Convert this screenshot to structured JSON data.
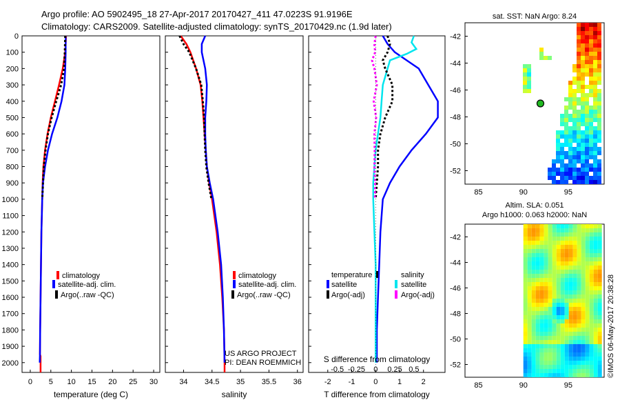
{
  "header": {
    "line1": "Argo profile: AO 5902495_18 27-Apr-2017 20170427_411 47.0223S 91.9196E",
    "line2": "Climatology: CARS2009. Satellite-adjusted climatology: synTS_20170429.nc (1.9d later)"
  },
  "colors": {
    "climatology": "#ff0000",
    "satellite": "#0000ff",
    "argo": "#000000",
    "temp_satellite_diff": "#00e5ee",
    "sal_argo_diff": "#ff00ff"
  },
  "depth_axis": {
    "ticks": [
      "0",
      "100",
      "200",
      "300",
      "400",
      "500",
      "600",
      "700",
      "800",
      "900",
      "1000",
      "1100",
      "1200",
      "1300",
      "1400",
      "1500",
      "1600",
      "1700",
      "1800",
      "1900",
      "2000"
    ],
    "range": [
      0,
      2060
    ]
  },
  "chart_data": [
    {
      "type": "line",
      "id": "temperature",
      "xlabel": "temperature (deg C)",
      "ylabel": "",
      "xlim": [
        -2,
        31.5
      ],
      "ylim": [
        2060,
        0
      ],
      "xticks": [
        "0",
        "5",
        "10",
        "15",
        "20",
        "25",
        "30"
      ],
      "legend": [
        "climatology",
        "satellite-adj. clim.",
        "Argo(..raw -QC)"
      ],
      "series": [
        {
          "name": "climatology",
          "depth": [
            0,
            100,
            200,
            300,
            400,
            500,
            600,
            700,
            800,
            900,
            1000,
            1200,
            1400,
            1600,
            1800,
            1950,
            1960,
            2060
          ],
          "values": [
            8.7,
            8.5,
            7.9,
            7.0,
            6.0,
            5.0,
            4.2,
            3.6,
            3.2,
            3.0,
            2.9,
            2.7,
            2.6,
            2.5,
            2.4,
            2.35,
            2.5,
            2.5
          ]
        },
        {
          "name": "satellite-adj. clim.",
          "depth": [
            0,
            100,
            200,
            300,
            400,
            500,
            600,
            700,
            800,
            900,
            1000,
            1200,
            1400,
            1600,
            1800,
            1950,
            2000
          ],
          "values": [
            8.6,
            8.6,
            8.5,
            8.3,
            7.6,
            6.6,
            5.3,
            4.3,
            3.6,
            3.1,
            2.9,
            2.7,
            2.6,
            2.5,
            2.4,
            2.35,
            2.3
          ]
        },
        {
          "name": "Argo(..raw -QC)",
          "depth": [
            0,
            100,
            150,
            200,
            300,
            400,
            500,
            600,
            700,
            800,
            900,
            1000
          ],
          "values": [
            8.5,
            8.4,
            8.3,
            8.2,
            7.5,
            6.3,
            5.2,
            4.3,
            3.7,
            3.3,
            3.1,
            2.9
          ]
        }
      ]
    },
    {
      "type": "line",
      "id": "salinity",
      "xlabel": "salinity",
      "ylabel": "",
      "xlim": [
        33.68,
        36.1
      ],
      "ylim": [
        2060,
        0
      ],
      "xticks": [
        "34",
        "34.5",
        "35",
        "35.5",
        "36"
      ],
      "legend": [
        "climatology",
        "satellite-adj. clim.",
        "Argo(..raw -QC)"
      ],
      "annotations": [
        "US ARGO PROJECT",
        "PI: DEAN ROEMMICH"
      ],
      "series": [
        {
          "name": "climatology",
          "depth": [
            0,
            50,
            100,
            200,
            300,
            400,
            500,
            600,
            700,
            800,
            900,
            1000,
            1200,
            1400,
            1600,
            1800,
            2000,
            2060
          ],
          "values": [
            33.95,
            34.05,
            34.12,
            34.22,
            34.3,
            34.33,
            34.35,
            34.37,
            34.39,
            34.41,
            34.45,
            34.5,
            34.58,
            34.64,
            34.68,
            34.71,
            34.72,
            34.72
          ]
        },
        {
          "name": "satellite-adj. clim.",
          "depth": [
            0,
            50,
            100,
            200,
            300,
            400,
            500,
            600,
            700,
            800,
            900,
            1000,
            1200,
            1400,
            1600,
            1800,
            2000
          ],
          "values": [
            34.38,
            34.32,
            34.32,
            34.38,
            34.41,
            34.4,
            34.38,
            34.38,
            34.39,
            34.41,
            34.46,
            34.52,
            34.6,
            34.66,
            34.69,
            34.71,
            34.72
          ]
        },
        {
          "name": "Argo(..raw -QC)",
          "depth": [
            0,
            50,
            100,
            200,
            300,
            400,
            500,
            600,
            700,
            800,
            900,
            1000
          ],
          "values": [
            33.93,
            34.0,
            34.1,
            34.22,
            34.31,
            34.34,
            34.36,
            34.37,
            34.38,
            34.4,
            34.44,
            34.49
          ]
        }
      ]
    },
    {
      "type": "line",
      "id": "difference",
      "xlabel": "T difference from climatology",
      "xlabel_top": "S difference from climatology",
      "xlim": [
        -2.8,
        2.9
      ],
      "ylim": [
        2060,
        0
      ],
      "xticks": [
        "-2",
        "-1",
        "0",
        "1",
        "2"
      ],
      "s_xticks": [
        "-0.5",
        "-0.25",
        "0",
        "0.25",
        "0.5"
      ],
      "legend": {
        "temperature_title": "temperature",
        "salinity_title": "salinity",
        "entries": [
          "satellite",
          "Argo(-adj)",
          "satellite",
          "Argo(-adj)"
        ]
      },
      "series": [
        {
          "name": "temperature satellite",
          "depth": [
            0,
            50,
            100,
            150,
            200,
            300,
            400,
            500,
            600,
            700,
            800,
            900,
            1000,
            1200,
            1400,
            1600,
            1800,
            2000
          ],
          "values": [
            0.3,
            0.5,
            0.8,
            1.3,
            1.8,
            2.2,
            2.6,
            2.6,
            2.1,
            1.5,
            1.0,
            0.6,
            0.3,
            0.2,
            0.15,
            0.1,
            0.05,
            0.05
          ]
        },
        {
          "name": "temperature satellite (cyan)",
          "depth": [
            0,
            40,
            80,
            110,
            150,
            300,
            400,
            500,
            600,
            700,
            800,
            900,
            1000,
            1200,
            1400,
            1600,
            1800,
            2000
          ],
          "values": [
            1.6,
            1.5,
            1.7,
            1.3,
            0.6,
            0.3,
            0.25,
            0.2,
            0.1,
            0.0,
            -0.05,
            -0.1,
            -0.1,
            -0.05,
            0.0,
            0.0,
            0.0,
            0.0
          ]
        },
        {
          "name": "temperature Argo(-adj)",
          "depth": [
            0,
            50,
            100,
            150,
            200,
            300,
            400,
            500,
            600,
            700,
            800,
            900,
            1000
          ],
          "values": [
            0.5,
            0.6,
            0.5,
            0.3,
            0.4,
            0.7,
            0.7,
            0.4,
            0.2,
            0.1,
            0.1,
            0.05,
            0.0
          ]
        },
        {
          "name": "salinity Argo(-adj)",
          "depth": [
            0,
            50,
            100,
            150,
            200,
            300,
            400,
            500,
            600,
            700,
            800,
            900,
            1000
          ],
          "values": [
            0.0,
            -0.05,
            -0.02,
            -0.15,
            -0.05,
            0.05,
            -0.08,
            0.02,
            -0.05,
            -0.04,
            -0.05,
            -0.02,
            -0.03
          ]
        }
      ]
    },
    {
      "type": "heatmap",
      "id": "sst_map",
      "title": "sat. SST: NaN Argo: 8.24",
      "xticks": [
        "85",
        "90",
        "95"
      ],
      "yticks": [
        "-42",
        "-44",
        "-46",
        "-48",
        "-50",
        "-52"
      ],
      "xlim": [
        83.5,
        99
      ],
      "ylim": [
        -53,
        -41
      ],
      "marker": {
        "lon": 91.9,
        "lat": -47.0
      }
    },
    {
      "type": "heatmap",
      "id": "sla_map",
      "title_line1": "Altim. SLA: 0.051",
      "title_line2": "Argo h1000: 0.063 h2000: NaN",
      "xticks": [
        "85",
        "90",
        "95"
      ],
      "yticks": [
        "-42",
        "-44",
        "-46",
        "-48",
        "-50",
        "-52"
      ],
      "xlim": [
        83.5,
        99
      ],
      "ylim": [
        -53,
        -41
      ],
      "marker": {
        "lon": 93.8,
        "lat": -47.8
      },
      "credit": "©IMOS 06-May-2017 20:38:28"
    }
  ]
}
